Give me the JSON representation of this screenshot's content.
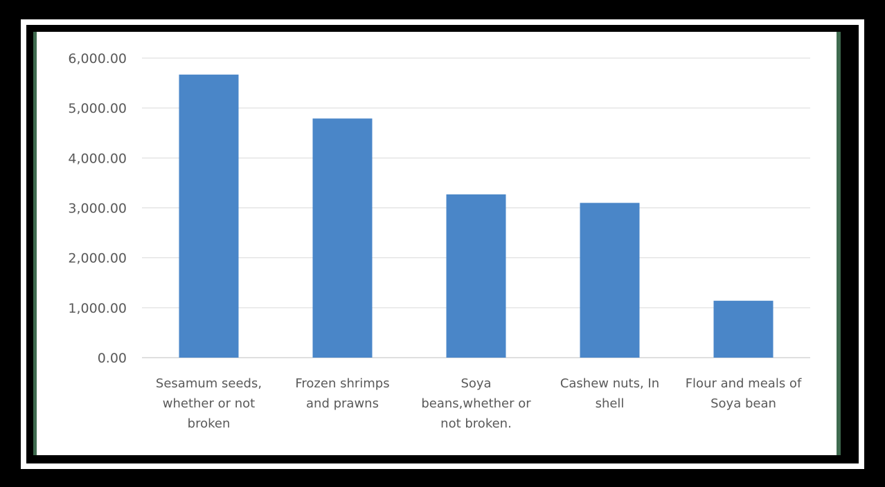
{
  "colors": {
    "bar": "#4a86c8",
    "frame_green": "#3f6b4f"
  },
  "chart_data": {
    "type": "bar",
    "categories": [
      [
        "Sesamum seeds,",
        "whether or not",
        "broken"
      ],
      [
        "Frozen shrimps",
        "and prawns"
      ],
      [
        "Soya",
        "beans,whether or",
        "not broken."
      ],
      [
        "Cashew nuts, In",
        "shell"
      ],
      [
        "Flour and meals of",
        "Soya bean"
      ]
    ],
    "values": [
      5670,
      4790,
      3270,
      3100,
      1140
    ],
    "yticks": [
      "0.00",
      "1,000.00",
      "2,000.00",
      "3,000.00",
      "4,000.00",
      "5,000.00",
      "6,000.00"
    ],
    "ylim": [
      0,
      6000
    ],
    "grid": true,
    "title": "",
    "xlabel": "",
    "ylabel": ""
  }
}
